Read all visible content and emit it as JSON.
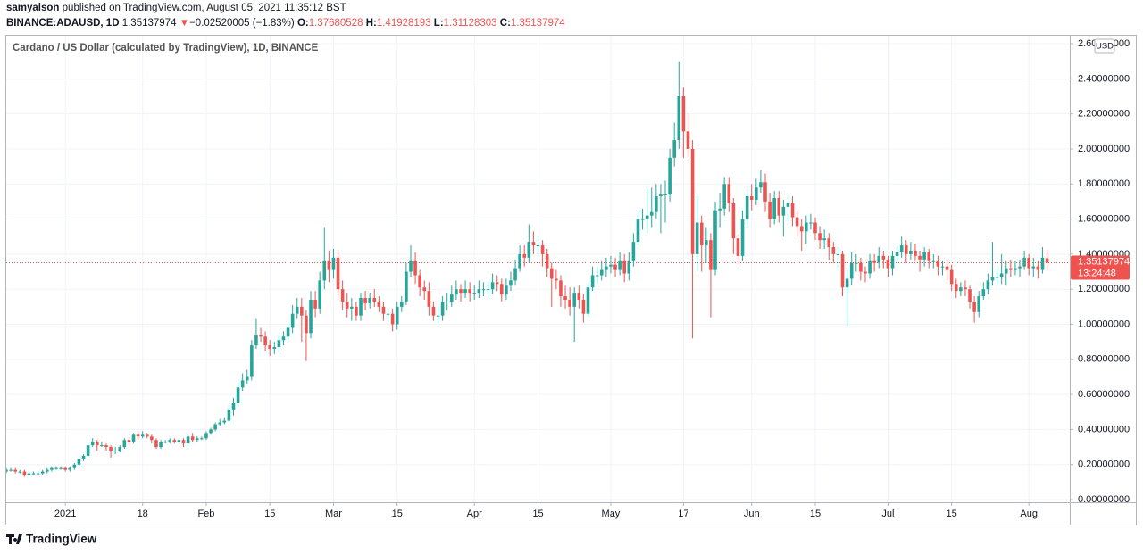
{
  "header": {
    "author": "samyalson",
    "published": "published on TradingView.com, August 05, 2021 11:35:12 BST",
    "symbol": "BINANCE:ADAUSD, 1D",
    "arrow": "▼",
    "change": "−0.02520005 (−1.83%)",
    "o_label": "O:",
    "h_label": "H:",
    "l_label": "L:",
    "c_label": "C:"
  },
  "footer": {
    "brand": "TradingView"
  },
  "chart_data": {
    "type": "candlestick",
    "title": "Cardano / US Dollar (calculated by TradingView), 1D, BINANCE",
    "currency": "USD",
    "countdown": "13:24:48",
    "up_color": "#26a69a",
    "down_color": "#ef5350",
    "grid": true,
    "x": [
      "2020-12-19",
      "2020-12-20",
      "2020-12-21",
      "2020-12-22",
      "2020-12-23",
      "2020-12-24",
      "2020-12-25",
      "2020-12-26",
      "2020-12-27",
      "2020-12-28",
      "2020-12-29",
      "2020-12-30",
      "2020-12-31",
      "2021-01-01",
      "2021-01-02",
      "2021-01-03",
      "2021-01-04",
      "2021-01-05",
      "2021-01-06",
      "2021-01-07",
      "2021-01-08",
      "2021-01-09",
      "2021-01-10",
      "2021-01-11",
      "2021-01-12",
      "2021-01-13",
      "2021-01-14",
      "2021-01-15",
      "2021-01-16",
      "2021-01-17",
      "2021-01-18",
      "2021-01-19",
      "2021-01-20",
      "2021-01-21",
      "2021-01-22",
      "2021-01-23",
      "2021-01-24",
      "2021-01-25",
      "2021-01-26",
      "2021-01-27",
      "2021-01-28",
      "2021-01-29",
      "2021-01-30",
      "2021-01-31",
      "2021-02-01",
      "2021-02-02",
      "2021-02-03",
      "2021-02-04",
      "2021-02-05",
      "2021-02-06",
      "2021-02-07",
      "2021-02-08",
      "2021-02-09",
      "2021-02-10",
      "2021-02-11",
      "2021-02-12",
      "2021-02-13",
      "2021-02-14",
      "2021-02-15",
      "2021-02-16",
      "2021-02-17",
      "2021-02-18",
      "2021-02-19",
      "2021-02-20",
      "2021-02-21",
      "2021-02-22",
      "2021-02-23",
      "2021-02-24",
      "2021-02-25",
      "2021-02-26",
      "2021-02-27",
      "2021-02-28",
      "2021-03-01",
      "2021-03-02",
      "2021-03-03",
      "2021-03-04",
      "2021-03-05",
      "2021-03-06",
      "2021-03-07",
      "2021-03-08",
      "2021-03-09",
      "2021-03-10",
      "2021-03-11",
      "2021-03-12",
      "2021-03-13",
      "2021-03-14",
      "2021-03-15",
      "2021-03-16",
      "2021-03-17",
      "2021-03-18",
      "2021-03-19",
      "2021-03-20",
      "2021-03-21",
      "2021-03-22",
      "2021-03-23",
      "2021-03-24",
      "2021-03-25",
      "2021-03-26",
      "2021-03-27",
      "2021-03-28",
      "2021-03-29",
      "2021-03-30",
      "2021-03-31",
      "2021-04-01",
      "2021-04-02",
      "2021-04-03",
      "2021-04-04",
      "2021-04-05",
      "2021-04-06",
      "2021-04-07",
      "2021-04-08",
      "2021-04-09",
      "2021-04-10",
      "2021-04-11",
      "2021-04-12",
      "2021-04-13",
      "2021-04-14",
      "2021-04-15",
      "2021-04-16",
      "2021-04-17",
      "2021-04-18",
      "2021-04-19",
      "2021-04-20",
      "2021-04-21",
      "2021-04-22",
      "2021-04-23",
      "2021-04-24",
      "2021-04-25",
      "2021-04-26",
      "2021-04-27",
      "2021-04-28",
      "2021-04-29",
      "2021-04-30",
      "2021-05-01",
      "2021-05-02",
      "2021-05-03",
      "2021-05-04",
      "2021-05-05",
      "2021-05-06",
      "2021-05-07",
      "2021-05-08",
      "2021-05-09",
      "2021-05-10",
      "2021-05-11",
      "2021-05-12",
      "2021-05-13",
      "2021-05-14",
      "2021-05-15",
      "2021-05-16",
      "2021-05-17",
      "2021-05-18",
      "2021-05-19",
      "2021-05-20",
      "2021-05-21",
      "2021-05-22",
      "2021-05-23",
      "2021-05-24",
      "2021-05-25",
      "2021-05-26",
      "2021-05-27",
      "2021-05-28",
      "2021-05-29",
      "2021-05-30",
      "2021-05-31",
      "2021-06-01",
      "2021-06-02",
      "2021-06-03",
      "2021-06-04",
      "2021-06-05",
      "2021-06-06",
      "2021-06-07",
      "2021-06-08",
      "2021-06-09",
      "2021-06-10",
      "2021-06-11",
      "2021-06-12",
      "2021-06-13",
      "2021-06-14",
      "2021-06-15",
      "2021-06-16",
      "2021-06-17",
      "2021-06-18",
      "2021-06-19",
      "2021-06-20",
      "2021-06-21",
      "2021-06-22",
      "2021-06-23",
      "2021-06-24",
      "2021-06-25",
      "2021-06-26",
      "2021-06-27",
      "2021-06-28",
      "2021-06-29",
      "2021-06-30",
      "2021-07-01",
      "2021-07-02",
      "2021-07-03",
      "2021-07-04",
      "2021-07-05",
      "2021-07-06",
      "2021-07-07",
      "2021-07-08",
      "2021-07-09",
      "2021-07-10",
      "2021-07-11",
      "2021-07-12",
      "2021-07-13",
      "2021-07-14",
      "2021-07-15",
      "2021-07-16",
      "2021-07-17",
      "2021-07-18",
      "2021-07-19",
      "2021-07-20",
      "2021-07-21",
      "2021-07-22",
      "2021-07-23",
      "2021-07-24",
      "2021-07-25",
      "2021-07-26",
      "2021-07-27",
      "2021-07-28",
      "2021-07-29",
      "2021-07-30",
      "2021-07-31",
      "2021-08-01",
      "2021-08-02",
      "2021-08-03",
      "2021-08-04",
      "2021-08-05"
    ],
    "open": [
      0.16,
      0.17,
      0.17,
      0.16,
      0.16,
      0.14,
      0.15,
      0.15,
      0.15,
      0.16,
      0.17,
      0.18,
      0.18,
      0.18,
      0.17,
      0.18,
      0.2,
      0.23,
      0.25,
      0.31,
      0.33,
      0.31,
      0.31,
      0.3,
      0.28,
      0.28,
      0.3,
      0.34,
      0.33,
      0.37,
      0.36,
      0.37,
      0.36,
      0.34,
      0.3,
      0.33,
      0.33,
      0.34,
      0.33,
      0.34,
      0.32,
      0.36,
      0.34,
      0.35,
      0.35,
      0.38,
      0.4,
      0.43,
      0.44,
      0.45,
      0.51,
      0.55,
      0.64,
      0.68,
      0.7,
      0.88,
      0.94,
      0.93,
      0.88,
      0.86,
      0.87,
      0.91,
      0.93,
      0.98,
      1.06,
      1.1,
      1.05,
      0.95,
      1.14,
      1.09,
      1.25,
      1.36,
      1.31,
      1.38,
      1.2,
      1.13,
      1.09,
      1.1,
      1.05,
      1.15,
      1.12,
      1.15,
      1.13,
      1.1,
      1.06,
      1.06,
      1.0,
      1.1,
      1.13,
      1.3,
      1.36,
      1.28,
      1.21,
      1.19,
      1.1,
      1.05,
      1.05,
      1.13,
      1.13,
      1.17,
      1.2,
      1.18,
      1.2,
      1.18,
      1.18,
      1.2,
      1.2,
      1.2,
      1.24,
      1.23,
      1.17,
      1.22,
      1.25,
      1.32,
      1.4,
      1.38,
      1.47,
      1.45,
      1.45,
      1.4,
      1.32,
      1.26,
      1.25,
      1.16,
      1.14,
      1.1,
      1.18,
      1.14,
      1.06,
      1.21,
      1.28,
      1.28,
      1.31,
      1.33,
      1.34,
      1.31,
      1.36,
      1.29,
      1.36,
      1.47,
      1.6,
      1.6,
      1.62,
      1.64,
      1.73,
      1.74,
      1.74,
      1.95,
      2.05,
      2.3,
      2.1,
      2.0,
      1.4,
      1.58,
      1.45,
      1.48,
      1.31,
      1.65,
      1.66,
      1.8,
      1.69,
      1.49,
      1.39,
      1.6,
      1.73,
      1.71,
      1.78,
      1.81,
      1.7,
      1.6,
      1.72,
      1.62,
      1.67,
      1.69,
      1.61,
      1.56,
      1.53,
      1.58,
      1.58,
      1.52,
      1.48,
      1.49,
      1.44,
      1.4,
      1.4,
      1.21,
      1.26,
      1.35,
      1.35,
      1.3,
      1.29,
      1.36,
      1.35,
      1.39,
      1.37,
      1.32,
      1.39,
      1.41,
      1.45,
      1.4,
      1.42,
      1.39,
      1.37,
      1.41,
      1.36,
      1.36,
      1.33,
      1.33,
      1.31,
      1.23,
      1.19,
      1.21,
      1.2,
      1.13,
      1.07,
      1.16,
      1.2,
      1.25,
      1.27,
      1.27,
      1.29,
      1.32,
      1.31,
      1.32,
      1.33,
      1.38,
      1.32,
      1.33,
      1.31,
      1.37680528
    ],
    "high": [
      0.18,
      0.18,
      0.18,
      0.17,
      0.17,
      0.16,
      0.16,
      0.16,
      0.17,
      0.18,
      0.19,
      0.19,
      0.19,
      0.19,
      0.19,
      0.21,
      0.24,
      0.26,
      0.32,
      0.35,
      0.34,
      0.33,
      0.32,
      0.31,
      0.3,
      0.31,
      0.35,
      0.36,
      0.38,
      0.39,
      0.39,
      0.38,
      0.37,
      0.35,
      0.34,
      0.34,
      0.35,
      0.35,
      0.35,
      0.35,
      0.37,
      0.38,
      0.36,
      0.36,
      0.39,
      0.41,
      0.44,
      0.46,
      0.47,
      0.54,
      0.58,
      0.67,
      0.72,
      0.74,
      0.91,
      1.03,
      0.98,
      0.96,
      0.91,
      0.9,
      0.94,
      0.96,
      1.01,
      1.11,
      1.15,
      1.15,
      1.08,
      1.19,
      1.19,
      1.3,
      1.55,
      1.42,
      1.43,
      1.42,
      1.25,
      1.18,
      1.15,
      1.13,
      1.18,
      1.19,
      1.18,
      1.2,
      1.16,
      1.13,
      1.09,
      1.09,
      1.13,
      1.16,
      1.35,
      1.45,
      1.41,
      1.31,
      1.25,
      1.24,
      1.13,
      1.1,
      1.16,
      1.18,
      1.22,
      1.25,
      1.23,
      1.25,
      1.24,
      1.22,
      1.25,
      1.24,
      1.25,
      1.29,
      1.28,
      1.26,
      1.26,
      1.3,
      1.37,
      1.45,
      1.45,
      1.57,
      1.53,
      1.5,
      1.48,
      1.43,
      1.35,
      1.31,
      1.28,
      1.22,
      1.21,
      1.21,
      1.22,
      1.17,
      1.24,
      1.33,
      1.33,
      1.36,
      1.38,
      1.39,
      1.38,
      1.41,
      1.4,
      1.41,
      1.52,
      1.65,
      1.66,
      1.77,
      1.78,
      1.8,
      1.8,
      1.82,
      2.0,
      2.15,
      2.5,
      2.35,
      2.2,
      2.05,
      1.73,
      1.62,
      1.55,
      1.52,
      1.7,
      1.75,
      1.84,
      1.84,
      1.72,
      1.53,
      1.65,
      1.77,
      1.8,
      1.83,
      1.88,
      1.86,
      1.75,
      1.76,
      1.76,
      1.71,
      1.74,
      1.73,
      1.65,
      1.6,
      1.62,
      1.63,
      1.61,
      1.56,
      1.54,
      1.52,
      1.47,
      1.44,
      1.42,
      1.31,
      1.41,
      1.4,
      1.38,
      1.33,
      1.4,
      1.4,
      1.44,
      1.42,
      1.39,
      1.42,
      1.45,
      1.5,
      1.48,
      1.47,
      1.46,
      1.42,
      1.44,
      1.43,
      1.4,
      1.39,
      1.36,
      1.36,
      1.34,
      1.26,
      1.24,
      1.25,
      1.22,
      1.16,
      1.19,
      1.24,
      1.29,
      1.47,
      1.32,
      1.4,
      1.36,
      1.37,
      1.36,
      1.37,
      1.42,
      1.4,
      1.38,
      1.36,
      1.44,
      1.41928193
    ],
    "low": [
      0.15,
      0.16,
      0.15,
      0.15,
      0.13,
      0.13,
      0.14,
      0.14,
      0.14,
      0.15,
      0.16,
      0.17,
      0.17,
      0.16,
      0.16,
      0.17,
      0.19,
      0.22,
      0.24,
      0.3,
      0.28,
      0.3,
      0.28,
      0.24,
      0.26,
      0.27,
      0.29,
      0.31,
      0.32,
      0.34,
      0.35,
      0.35,
      0.32,
      0.29,
      0.29,
      0.32,
      0.32,
      0.32,
      0.32,
      0.3,
      0.31,
      0.33,
      0.33,
      0.34,
      0.34,
      0.37,
      0.39,
      0.42,
      0.43,
      0.44,
      0.48,
      0.53,
      0.62,
      0.66,
      0.68,
      0.86,
      0.9,
      0.85,
      0.82,
      0.83,
      0.84,
      0.88,
      0.9,
      0.95,
      1.03,
      0.9,
      0.79,
      0.92,
      1.04,
      1.06,
      1.2,
      1.24,
      1.26,
      1.15,
      1.08,
      1.04,
      1.02,
      1.02,
      1.02,
      1.08,
      1.09,
      1.1,
      1.07,
      1.02,
      1.01,
      0.96,
      0.97,
      1.07,
      1.11,
      1.27,
      1.23,
      1.16,
      1.14,
      1.05,
      1.02,
      1.0,
      1.02,
      1.08,
      1.1,
      1.14,
      1.13,
      1.15,
      1.13,
      1.14,
      1.15,
      1.16,
      1.16,
      1.17,
      1.19,
      1.13,
      1.14,
      1.19,
      1.22,
      1.3,
      1.33,
      1.35,
      1.4,
      1.4,
      1.33,
      1.27,
      1.1,
      1.2,
      1.1,
      1.09,
      1.05,
      0.9,
      1.09,
      1.01,
      1.04,
      1.19,
      1.23,
      1.25,
      1.27,
      1.29,
      1.27,
      1.28,
      1.24,
      1.25,
      1.33,
      1.44,
      1.54,
      1.52,
      1.55,
      1.6,
      1.52,
      1.58,
      1.7,
      1.9,
      2.0,
      1.95,
      1.95,
      0.92,
      1.3,
      1.3,
      1.35,
      1.04,
      1.28,
      1.55,
      1.62,
      1.64,
      1.4,
      1.34,
      1.36,
      1.55,
      1.65,
      1.68,
      1.75,
      1.64,
      1.55,
      1.57,
      1.58,
      1.5,
      1.58,
      1.56,
      1.5,
      1.42,
      1.46,
      1.54,
      1.48,
      1.43,
      1.43,
      1.37,
      1.35,
      1.31,
      1.16,
      0.99,
      1.22,
      1.3,
      1.25,
      1.24,
      1.26,
      1.3,
      1.32,
      1.32,
      1.27,
      1.28,
      1.35,
      1.38,
      1.35,
      1.37,
      1.36,
      1.3,
      1.33,
      1.32,
      1.32,
      1.28,
      1.28,
      1.25,
      1.19,
      1.15,
      1.16,
      1.16,
      1.09,
      1.01,
      1.04,
      1.14,
      1.17,
      1.22,
      1.22,
      1.23,
      1.22,
      1.27,
      1.28,
      1.27,
      1.31,
      1.28,
      1.27,
      1.26,
      1.29,
      1.31128303
    ],
    "close": [
      0.17,
      0.17,
      0.16,
      0.16,
      0.14,
      0.15,
      0.15,
      0.15,
      0.16,
      0.17,
      0.18,
      0.18,
      0.18,
      0.17,
      0.18,
      0.2,
      0.23,
      0.25,
      0.31,
      0.33,
      0.31,
      0.31,
      0.3,
      0.28,
      0.28,
      0.3,
      0.34,
      0.33,
      0.37,
      0.36,
      0.37,
      0.36,
      0.34,
      0.3,
      0.33,
      0.33,
      0.34,
      0.33,
      0.34,
      0.32,
      0.36,
      0.34,
      0.35,
      0.35,
      0.38,
      0.4,
      0.43,
      0.44,
      0.45,
      0.51,
      0.55,
      0.64,
      0.68,
      0.7,
      0.88,
      0.94,
      0.93,
      0.88,
      0.86,
      0.87,
      0.91,
      0.93,
      0.98,
      1.06,
      1.1,
      1.05,
      0.95,
      1.14,
      1.09,
      1.25,
      1.36,
      1.31,
      1.38,
      1.2,
      1.13,
      1.09,
      1.1,
      1.05,
      1.15,
      1.12,
      1.15,
      1.13,
      1.1,
      1.06,
      1.06,
      1.0,
      1.1,
      1.13,
      1.3,
      1.36,
      1.28,
      1.21,
      1.19,
      1.1,
      1.05,
      1.05,
      1.13,
      1.13,
      1.17,
      1.2,
      1.18,
      1.2,
      1.18,
      1.18,
      1.2,
      1.2,
      1.2,
      1.24,
      1.23,
      1.17,
      1.22,
      1.25,
      1.32,
      1.4,
      1.38,
      1.47,
      1.45,
      1.45,
      1.4,
      1.32,
      1.26,
      1.25,
      1.16,
      1.14,
      1.1,
      1.18,
      1.14,
      1.06,
      1.21,
      1.28,
      1.28,
      1.31,
      1.33,
      1.34,
      1.31,
      1.36,
      1.29,
      1.36,
      1.47,
      1.6,
      1.6,
      1.62,
      1.64,
      1.73,
      1.74,
      1.74,
      1.95,
      2.05,
      2.3,
      2.1,
      2.0,
      1.4,
      1.58,
      1.45,
      1.48,
      1.31,
      1.65,
      1.66,
      1.8,
      1.69,
      1.49,
      1.39,
      1.6,
      1.73,
      1.71,
      1.78,
      1.81,
      1.7,
      1.6,
      1.72,
      1.62,
      1.67,
      1.69,
      1.61,
      1.56,
      1.53,
      1.58,
      1.58,
      1.52,
      1.48,
      1.49,
      1.44,
      1.4,
      1.4,
      1.21,
      1.26,
      1.35,
      1.35,
      1.3,
      1.29,
      1.36,
      1.35,
      1.39,
      1.37,
      1.32,
      1.39,
      1.41,
      1.45,
      1.4,
      1.42,
      1.39,
      1.37,
      1.41,
      1.36,
      1.36,
      1.33,
      1.33,
      1.31,
      1.23,
      1.19,
      1.21,
      1.2,
      1.13,
      1.07,
      1.16,
      1.2,
      1.25,
      1.27,
      1.27,
      1.29,
      1.32,
      1.31,
      1.32,
      1.33,
      1.38,
      1.32,
      1.33,
      1.31,
      1.38,
      1.35137974
    ],
    "xlim": [
      "2020-12-19",
      "2021-08-10"
    ],
    "xticks": [
      {
        "value": "2021-01-01",
        "label": "2021"
      },
      {
        "value": "2021-01-18",
        "label": "18"
      },
      {
        "value": "2021-02-01",
        "label": "Feb"
      },
      {
        "value": "2021-02-15",
        "label": "15"
      },
      {
        "value": "2021-03-01",
        "label": "Mar"
      },
      {
        "value": "2021-03-15",
        "label": "15"
      },
      {
        "value": "2021-04-01",
        "label": "Apr"
      },
      {
        "value": "2021-04-15",
        "label": "15"
      },
      {
        "value": "2021-05-01",
        "label": "May"
      },
      {
        "value": "2021-05-17",
        "label": "17"
      },
      {
        "value": "2021-06-01",
        "label": "Jun"
      },
      {
        "value": "2021-06-15",
        "label": "15"
      },
      {
        "value": "2021-07-01",
        "label": "Jul"
      },
      {
        "value": "2021-07-15",
        "label": "15"
      },
      {
        "value": "2021-08-01",
        "label": "Aug"
      }
    ],
    "ylim": [
      -0.015,
      2.646
    ],
    "yticks": [
      {
        "value": 0,
        "label": "0.00000000"
      },
      {
        "value": 0.2,
        "label": "0.20000000"
      },
      {
        "value": 0.4,
        "label": "0.40000000"
      },
      {
        "value": 0.6,
        "label": "0.60000000"
      },
      {
        "value": 0.8,
        "label": "0.80000000"
      },
      {
        "value": 1.0,
        "label": "1.00000000"
      },
      {
        "value": 1.2,
        "label": "1.20000000"
      },
      {
        "value": 1.4,
        "label": "1.40000000"
      },
      {
        "value": 1.6,
        "label": "1.60000000"
      },
      {
        "value": 1.8,
        "label": "1.80000000"
      },
      {
        "value": 2.0,
        "label": "2.00000000"
      },
      {
        "value": 2.2,
        "label": "2.20000000"
      },
      {
        "value": 2.4,
        "label": "2.40000000"
      },
      {
        "value": 2.6,
        "label": "2.60000000"
      }
    ]
  }
}
